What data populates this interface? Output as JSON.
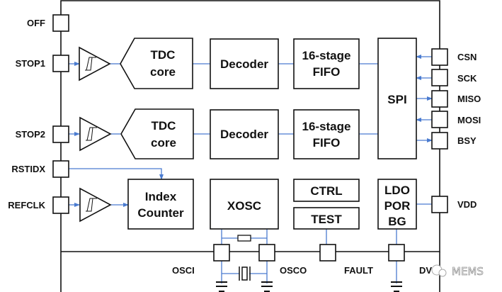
{
  "colors": {
    "line": "#111111",
    "signal": "#4a7bd0"
  },
  "pins_left": [
    {
      "label": "OFF"
    },
    {
      "label": "STOP1"
    },
    {
      "label": "STOP2"
    },
    {
      "label": "RSTIDX"
    },
    {
      "label": "REFCLK"
    }
  ],
  "pins_right": [
    {
      "label": "CSN"
    },
    {
      "label": "SCK"
    },
    {
      "label": "MISO"
    },
    {
      "label": "MOSI"
    },
    {
      "label": "BSY"
    },
    {
      "label": "VDD"
    }
  ],
  "pins_bottom": [
    {
      "label": "OSCI"
    },
    {
      "label": "OSCO"
    },
    {
      "label": "FAULT"
    },
    {
      "label": "DV"
    }
  ],
  "blocks": {
    "tdc1": [
      "TDC",
      "core"
    ],
    "tdc2": [
      "TDC",
      "core"
    ],
    "decoder1": "Decoder",
    "decoder2": "Decoder",
    "fifo1": [
      "16-stage",
      "FIFO"
    ],
    "fifo2": [
      "16-stage",
      "FIFO"
    ],
    "spi": "SPI",
    "index": [
      "Index",
      "Counter"
    ],
    "xosc": "XOSC",
    "ctrl": "CTRL",
    "test": "TEST",
    "ldo": [
      "LDO",
      "POR",
      "BG"
    ]
  },
  "watermark": "MEMS"
}
